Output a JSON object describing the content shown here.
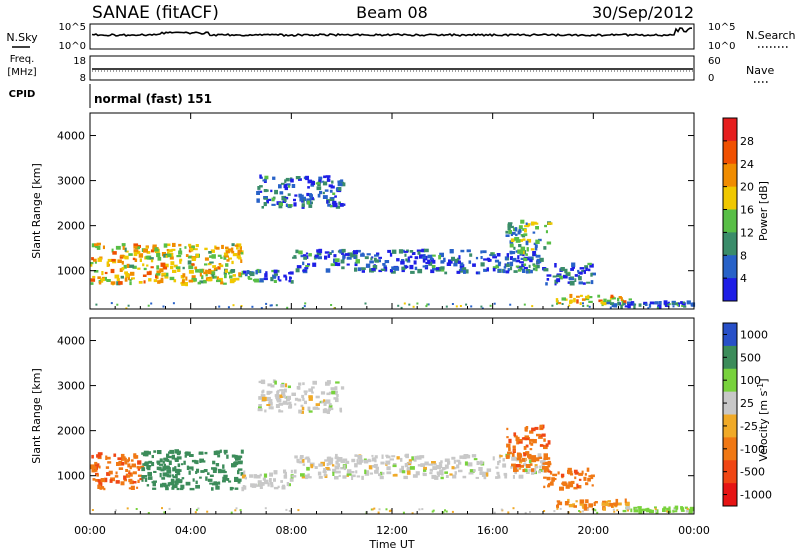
{
  "header": {
    "station": "SANAE (fitACF)",
    "beam": "Beam 08",
    "date": "30/Sep/2012"
  },
  "top_panels": {
    "nsky_label": "N.Sky",
    "nsky_ticks": [
      "10^5",
      "10^0"
    ],
    "nsearch_label": "N.Search",
    "nsearch_ticks": [
      "10^5",
      "10^0"
    ],
    "freq_label": "Freq.",
    "freq_unit": "[MHz]",
    "freq_ticks": [
      "18",
      "8"
    ],
    "nave_label": "Nave",
    "nave_ticks": [
      "60",
      "0"
    ],
    "cpid_label": "CPID",
    "cpid_value": "normal (fast) 151"
  },
  "colors": {
    "power_scale": [
      "#1e1ee6",
      "#2862c8",
      "#3a8c6a",
      "#58be46",
      "#f0c800",
      "#f08c00",
      "#f05000",
      "#e61e1e"
    ],
    "velocity_scale": [
      "#e61414",
      "#f04614",
      "#f07814",
      "#f0aa28",
      "#c8c8c8",
      "#78d23c",
      "#3c8c5a",
      "#2850c8"
    ],
    "gray_no_data": "#c8c8c8"
  },
  "chart_data": [
    {
      "type": "heatmap",
      "name": "power-panel",
      "ylabel": "Slant Range [km]",
      "y_ticks": [
        "4000",
        "3000",
        "2000",
        "1000"
      ],
      "ylim": [
        150,
        4500
      ],
      "x_ticks": [
        "00:00",
        "04:00",
        "08:00",
        "12:00",
        "16:00",
        "20:00",
        "00:00"
      ],
      "xlim": [
        0,
        24
      ],
      "colorbar_label": "Power [dB]",
      "colorbar_ticks": [
        "28",
        "24",
        "20",
        "16",
        "12",
        "8",
        "4"
      ],
      "colorbar_range": [
        0,
        30
      ],
      "regions": [
        {
          "t": [
            0.0,
            6.0
          ],
          "range": [
            700,
            1600
          ],
          "value": 18
        },
        {
          "t": [
            6.0,
            8.0
          ],
          "range": [
            750,
            1000
          ],
          "value": 8
        },
        {
          "t": [
            6.6,
            10.0
          ],
          "range": [
            2400,
            3100
          ],
          "value": 6
        },
        {
          "t": [
            8.0,
            18.0
          ],
          "range": [
            950,
            1450
          ],
          "value": 6
        },
        {
          "t": [
            16.5,
            18.2
          ],
          "range": [
            1400,
            2100
          ],
          "value": 12
        },
        {
          "t": [
            18.0,
            20.0
          ],
          "range": [
            700,
            1150
          ],
          "value": 6
        },
        {
          "t": [
            18.5,
            21.5
          ],
          "range": [
            250,
            450
          ],
          "value": 18
        },
        {
          "t": [
            20.5,
            23.9
          ],
          "range": [
            200,
            300
          ],
          "value": 6
        }
      ]
    },
    {
      "type": "heatmap",
      "name": "velocity-panel",
      "ylabel": "Slant Range [km]",
      "y_ticks": [
        "4000",
        "3000",
        "2000",
        "1000"
      ],
      "ylim": [
        150,
        4500
      ],
      "x_ticks": [
        "00:00",
        "04:00",
        "08:00",
        "12:00",
        "16:00",
        "20:00",
        "00:00"
      ],
      "xlim": [
        0,
        24
      ],
      "xlabel": "Time UT",
      "colorbar_label": "Velocity [m s",
      "colorbar_label_sup": "-1",
      "colorbar_label_tail": "]",
      "colorbar_ticks": [
        "1000",
        "500",
        "100",
        "25",
        "-25",
        "-100",
        "-500",
        "-1000"
      ],
      "regions": [
        {
          "t": [
            0.0,
            2.0
          ],
          "range": [
            700,
            1500
          ],
          "value": -400
        },
        {
          "t": [
            2.0,
            6.0
          ],
          "range": [
            700,
            1550
          ],
          "value": 300
        },
        {
          "t": [
            6.0,
            8.0
          ],
          "range": [
            700,
            1100
          ],
          "value": 0
        },
        {
          "t": [
            6.6,
            10.0
          ],
          "range": [
            2400,
            3100
          ],
          "value": 0
        },
        {
          "t": [
            8.0,
            18.0
          ],
          "range": [
            950,
            1450
          ],
          "value": 0
        },
        {
          "t": [
            16.5,
            18.2
          ],
          "range": [
            1100,
            2100
          ],
          "value": -400
        },
        {
          "t": [
            18.0,
            20.0
          ],
          "range": [
            700,
            1150
          ],
          "value": -400
        },
        {
          "t": [
            18.5,
            21.5
          ],
          "range": [
            250,
            450
          ],
          "value": -100
        },
        {
          "t": [
            21.0,
            23.9
          ],
          "range": [
            200,
            300
          ],
          "value": 50
        }
      ]
    }
  ]
}
